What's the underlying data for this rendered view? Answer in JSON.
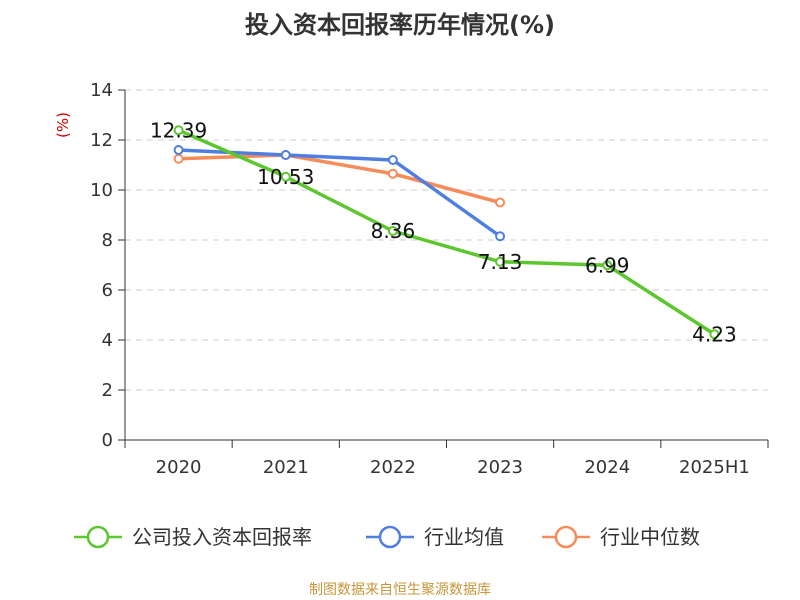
{
  "chart_data": {
    "type": "line",
    "title": "投入资本回报率历年情况(%)",
    "ylabel": "(%)",
    "xlabel": "",
    "categories": [
      "2020",
      "2021",
      "2022",
      "2023",
      "2024",
      "2025H1"
    ],
    "ylim": [
      0,
      14
    ],
    "yticks": [
      0,
      2,
      4,
      6,
      8,
      10,
      12,
      14
    ],
    "grid": true,
    "legend_position": "bottom",
    "series": [
      {
        "name": "公司投入资本回报率",
        "color": "#5cc62f",
        "values": [
          12.39,
          10.53,
          8.36,
          7.13,
          6.99,
          4.23
        ],
        "data_labels": [
          "12.39",
          "10.53",
          "8.36",
          "7.13",
          "6.99",
          "4.23"
        ]
      },
      {
        "name": "行业均值",
        "color": "#4e7fe0",
        "values": [
          11.6,
          11.4,
          11.2,
          8.15,
          null,
          null
        ]
      },
      {
        "name": "行业中位数",
        "color": "#f58c5a",
        "values": [
          11.25,
          11.4,
          10.65,
          9.5,
          null,
          null
        ]
      }
    ],
    "source": "制图数据来自恒生聚源数据库"
  }
}
